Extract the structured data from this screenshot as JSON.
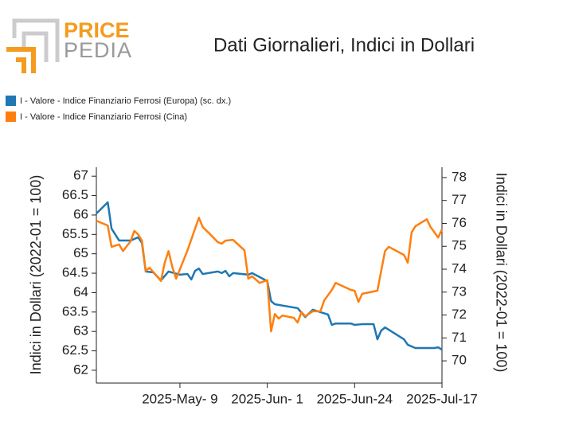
{
  "logo": {
    "top": "PRICE",
    "bottom": "PEDIA"
  },
  "chart_data": {
    "type": "line",
    "title": "Dati Giornalieri, Indici in Dollari",
    "ylabel": "Indici in Dollari (2022-01 = 100)",
    "y2label": "Indici in Dollari (2022-01 = 100)",
    "xlim": [
      "2025-04-17",
      "2025-07-17"
    ],
    "xticks": [
      {
        "value": "2025-05-09",
        "label": "2025-May- 9"
      },
      {
        "value": "2025-06-01",
        "label": "2025-Jun- 1"
      },
      {
        "value": "2025-06-24",
        "label": "2025-Jun-24"
      },
      {
        "value": "2025-07-17",
        "label": "2025-Jul-17"
      }
    ],
    "ylim": [
      61.67,
      67.23
    ],
    "yticks": [
      62,
      62.5,
      63,
      63.5,
      64,
      64.5,
      65,
      65.5,
      66,
      66.5,
      67
    ],
    "y2lim": [
      69.03,
      78.45
    ],
    "y2ticks": [
      70,
      71,
      72,
      73,
      74,
      75,
      76,
      77,
      78
    ],
    "series": [
      {
        "name": "I - Valore - Indice Finanziario Ferrosi (Europa) (sc. dx.)",
        "color": "#1f77b4",
        "axis": "y2",
        "x": [
          "2025-04-17",
          "2025-04-20",
          "2025-04-21",
          "2025-04-23",
          "2025-04-26",
          "2025-04-28",
          "2025-04-29",
          "2025-04-30",
          "2025-05-02",
          "2025-05-04",
          "2025-05-06",
          "2025-05-09",
          "2025-05-11",
          "2025-05-12",
          "2025-05-13",
          "2025-05-14",
          "2025-05-15",
          "2025-05-19",
          "2025-05-20",
          "2025-05-21",
          "2025-05-22",
          "2025-05-23",
          "2025-05-27",
          "2025-05-28",
          "2025-06-01",
          "2025-06-02",
          "2025-06-03",
          "2025-06-09",
          "2025-06-11",
          "2025-06-13",
          "2025-06-17",
          "2025-06-18",
          "2025-06-19",
          "2025-06-23",
          "2025-06-24",
          "2025-06-26",
          "2025-06-29",
          "2025-06-30",
          "2025-07-01",
          "2025-07-02",
          "2025-07-07",
          "2025-07-08",
          "2025-07-10",
          "2025-07-15",
          "2025-07-16",
          "2025-07-17"
        ],
        "values": [
          76.43,
          76.92,
          75.77,
          75.25,
          75.25,
          75.39,
          75.15,
          73.9,
          73.86,
          73.51,
          73.9,
          73.76,
          73.79,
          73.55,
          73.93,
          74.03,
          73.79,
          73.9,
          73.83,
          73.93,
          73.69,
          73.83,
          73.76,
          73.83,
          73.48,
          72.61,
          72.47,
          72.3,
          71.91,
          72.23,
          72.02,
          71.57,
          71.63,
          71.63,
          71.57,
          71.6,
          71.6,
          70.94,
          71.32,
          71.46,
          70.94,
          70.7,
          70.56,
          70.56,
          70.59,
          70.49
        ]
      },
      {
        "name": "I - Valore - Indice Finanziario Ferrosi (Cina)",
        "color": "#ff7f0e",
        "x": [
          "2025-04-17",
          "2025-04-20",
          "2025-04-21",
          "2025-04-23",
          "2025-04-24",
          "2025-04-26",
          "2025-04-27",
          "2025-04-28",
          "2025-04-29",
          "2025-04-30",
          "2025-05-01",
          "2025-05-03",
          "2025-05-04",
          "2025-05-05",
          "2025-05-06",
          "2025-05-07",
          "2025-05-08",
          "2025-05-09",
          "2025-05-11",
          "2025-05-14",
          "2025-05-15",
          "2025-05-17",
          "2025-05-19",
          "2025-05-20",
          "2025-05-21",
          "2025-05-23",
          "2025-05-25",
          "2025-05-26",
          "2025-05-27",
          "2025-05-28",
          "2025-05-30",
          "2025-06-01",
          "2025-06-02",
          "2025-06-03",
          "2025-06-04",
          "2025-06-05",
          "2025-06-08",
          "2025-06-09",
          "2025-06-10",
          "2025-06-11",
          "2025-06-13",
          "2025-06-15",
          "2025-06-16",
          "2025-06-18",
          "2025-06-19",
          "2025-06-23",
          "2025-06-24",
          "2025-06-25",
          "2025-06-26",
          "2025-06-30",
          "2025-07-02",
          "2025-07-03",
          "2025-07-07",
          "2025-07-08",
          "2025-07-09",
          "2025-07-10",
          "2025-07-13",
          "2025-07-14",
          "2025-07-16",
          "2025-07-17"
        ],
        "values": [
          65.85,
          65.73,
          65.18,
          65.24,
          65.07,
          65.32,
          65.59,
          65.5,
          65.34,
          64.56,
          64.64,
          64.42,
          64.3,
          64.77,
          65.07,
          64.66,
          64.36,
          64.6,
          65.09,
          65.93,
          65.69,
          65.5,
          65.3,
          65.26,
          65.34,
          65.36,
          65.18,
          65.09,
          64.36,
          64.42,
          64.25,
          64.32,
          63.0,
          63.45,
          63.33,
          63.41,
          63.35,
          63.23,
          63.5,
          63.39,
          63.52,
          63.52,
          63.8,
          64.07,
          64.25,
          64.07,
          64.05,
          63.76,
          63.97,
          64.05,
          65.07,
          65.18,
          64.97,
          64.77,
          65.55,
          65.71,
          65.89,
          65.69,
          65.42,
          65.63
        ]
      }
    ]
  }
}
